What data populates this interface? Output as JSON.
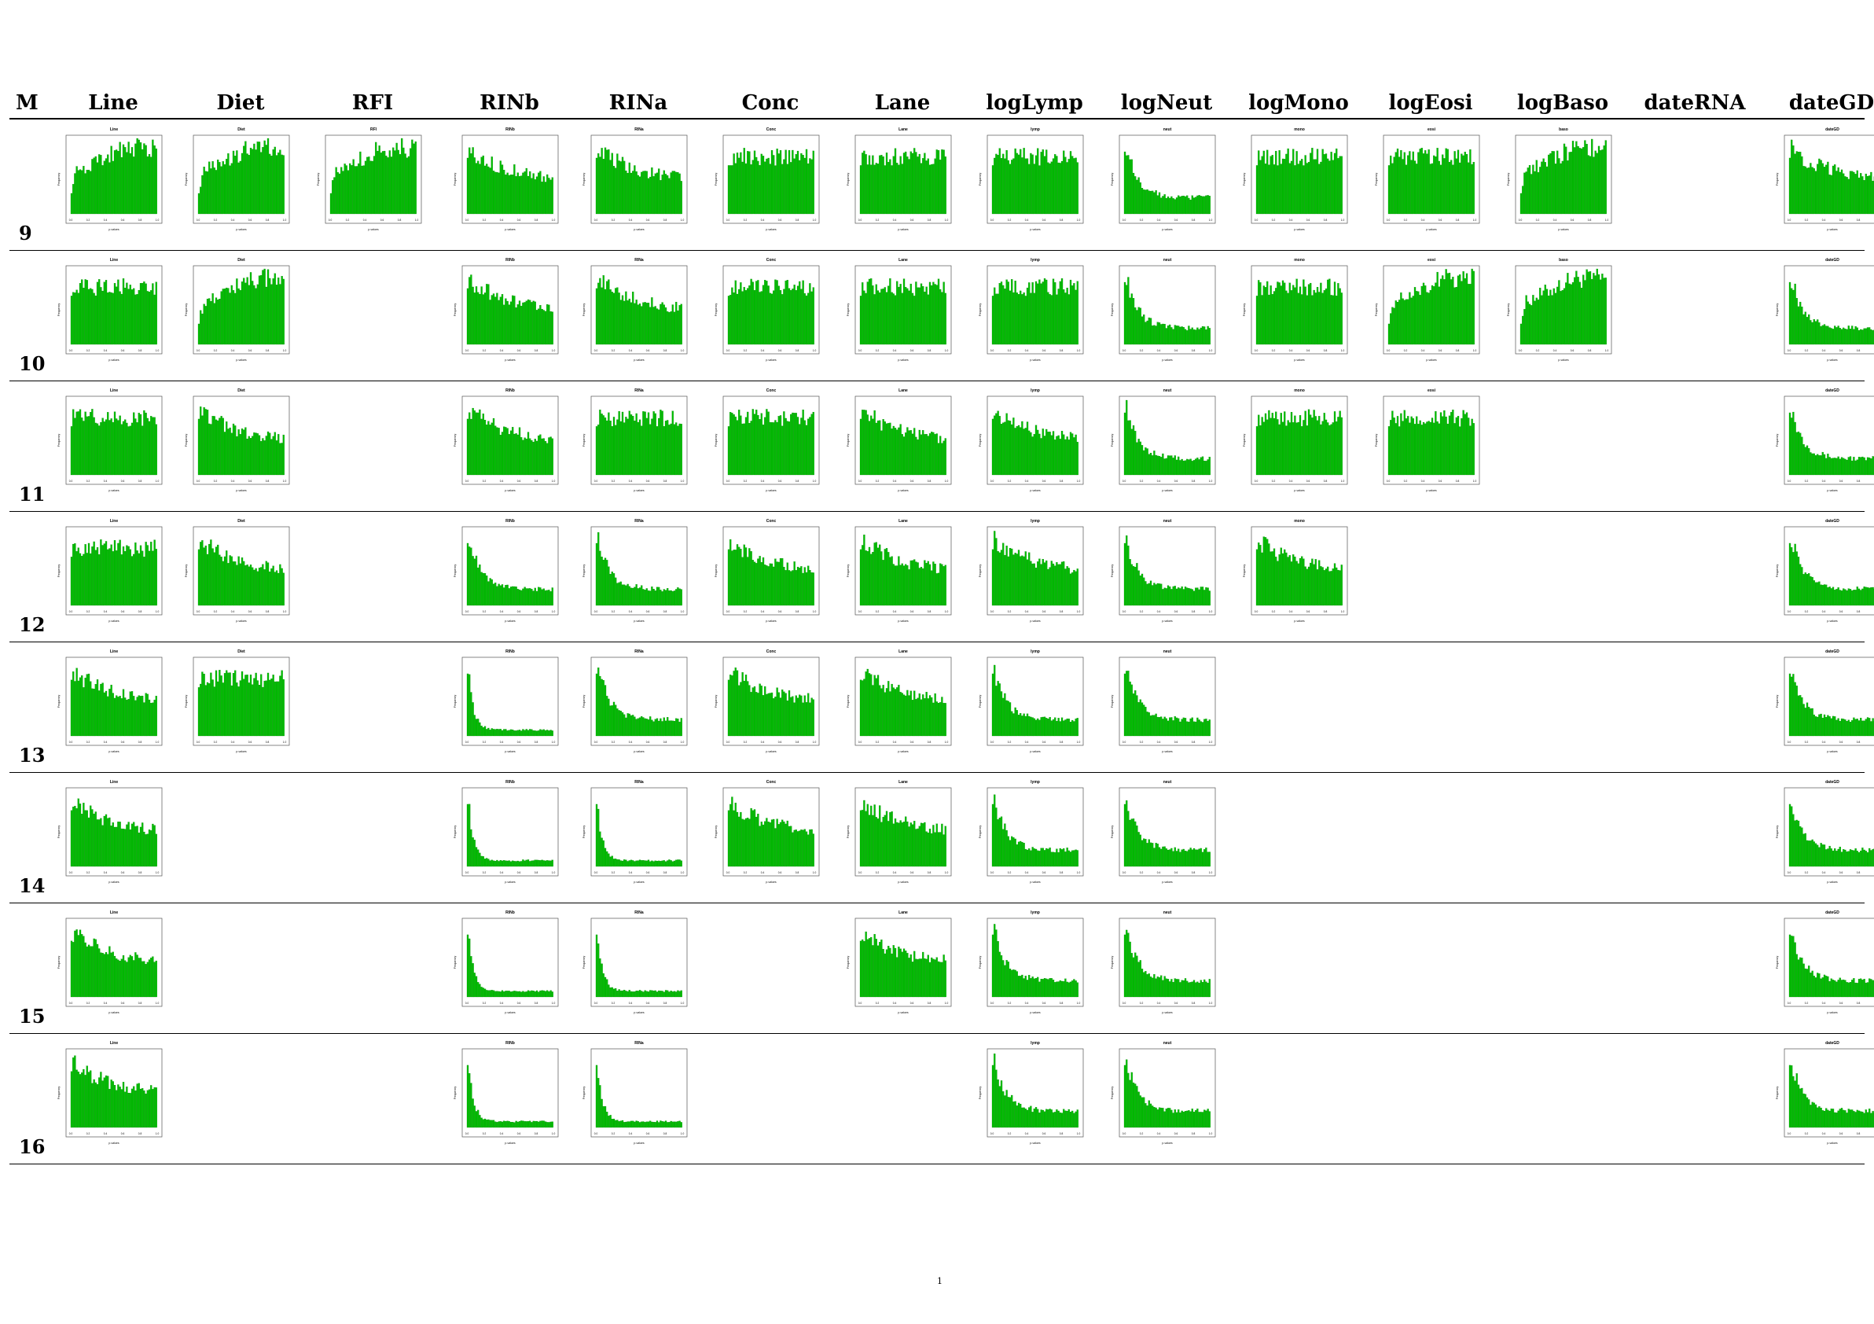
{
  "columns": [
    "Line",
    "Diet",
    "RFI",
    "RINb",
    "RINa",
    "Conc",
    "Lane",
    "logLymp",
    "logNeut",
    "logMono",
    "logEosi",
    "logBaso",
    "dateRNA",
    "dateGD"
  ],
  "row_header": "M",
  "page_number": "1",
  "colors": {
    "bar_fill": "#00c000",
    "bar_edge": "#007a00",
    "frame": "#555555",
    "rule": "#000000"
  },
  "chart_data": {
    "type": "bar",
    "description_note": "",
    "panel_xlabel": "p-values",
    "panel_ylabel": "Frequency",
    "panel_xticks": [
      "0.0",
      "0.2",
      "0.4",
      "0.6",
      "0.8",
      "1.0"
    ],
    "panel_titles": {
      "Line": "Line",
      "Diet": "Diet",
      "RFI": "RFI",
      "RINb": "RINb",
      "RINa": "RINa",
      "Conc": "Conc",
      "Lane": "Lane",
      "logLymp": "lymp",
      "logNeut": "neut",
      "logMono": "mono",
      "logEosi": "eosi",
      "logBaso": "baso",
      "dateGD": "dateGD"
    },
    "rows": [
      {
        "m": "9",
        "panels": [
          {
            "col": "Line",
            "shape": "rising"
          },
          {
            "col": "Diet",
            "shape": "rising"
          },
          {
            "col": "RFI",
            "shape": "rising"
          },
          {
            "col": "RINb",
            "shape": "mild"
          },
          {
            "col": "RINa",
            "shape": "mild"
          },
          {
            "col": "Conc",
            "shape": "flat"
          },
          {
            "col": "Lane",
            "shape": "flat"
          },
          {
            "col": "logLymp",
            "shape": "flat"
          },
          {
            "col": "logNeut",
            "shape": "strong"
          },
          {
            "col": "logMono",
            "shape": "flat"
          },
          {
            "col": "logEosi",
            "shape": "flat"
          },
          {
            "col": "logBaso",
            "shape": "rising"
          },
          {
            "col": "dateGD",
            "shape": "mild"
          }
        ]
      },
      {
        "m": "10",
        "panels": [
          {
            "col": "Line",
            "shape": "flat"
          },
          {
            "col": "Diet",
            "shape": "rising"
          },
          {
            "col": "RINb",
            "shape": "mild"
          },
          {
            "col": "RINa",
            "shape": "mild"
          },
          {
            "col": "Conc",
            "shape": "flat"
          },
          {
            "col": "Lane",
            "shape": "flat"
          },
          {
            "col": "logLymp",
            "shape": "flat"
          },
          {
            "col": "logNeut",
            "shape": "strong"
          },
          {
            "col": "logMono",
            "shape": "flat"
          },
          {
            "col": "logEosi",
            "shape": "rising"
          },
          {
            "col": "logBaso",
            "shape": "rising"
          },
          {
            "col": "dateGD",
            "shape": "strong"
          }
        ]
      },
      {
        "m": "11",
        "panels": [
          {
            "col": "Line",
            "shape": "flat"
          },
          {
            "col": "Diet",
            "shape": "mild"
          },
          {
            "col": "RINb",
            "shape": "mild"
          },
          {
            "col": "RINa",
            "shape": "flat"
          },
          {
            "col": "Conc",
            "shape": "flat"
          },
          {
            "col": "Lane",
            "shape": "mild"
          },
          {
            "col": "logLymp",
            "shape": "mild"
          },
          {
            "col": "logNeut",
            "shape": "strong"
          },
          {
            "col": "logMono",
            "shape": "flat"
          },
          {
            "col": "logEosi",
            "shape": "flat"
          },
          {
            "col": "dateGD",
            "shape": "strong"
          }
        ]
      },
      {
        "m": "12",
        "panels": [
          {
            "col": "Line",
            "shape": "flat"
          },
          {
            "col": "Diet",
            "shape": "mild"
          },
          {
            "col": "RINb",
            "shape": "strong"
          },
          {
            "col": "RINa",
            "shape": "strong"
          },
          {
            "col": "Conc",
            "shape": "mild"
          },
          {
            "col": "Lane",
            "shape": "mild"
          },
          {
            "col": "logLymp",
            "shape": "mild"
          },
          {
            "col": "logNeut",
            "shape": "strong"
          },
          {
            "col": "logMono",
            "shape": "mild"
          },
          {
            "col": "dateGD",
            "shape": "strong"
          }
        ]
      },
      {
        "m": "13",
        "panels": [
          {
            "col": "Line",
            "shape": "mild"
          },
          {
            "col": "Diet",
            "shape": "flat"
          },
          {
            "col": "RINb",
            "shape": "vstrong"
          },
          {
            "col": "RINa",
            "shape": "strong"
          },
          {
            "col": "Conc",
            "shape": "mild"
          },
          {
            "col": "Lane",
            "shape": "mild"
          },
          {
            "col": "logLymp",
            "shape": "strong"
          },
          {
            "col": "logNeut",
            "shape": "strong"
          },
          {
            "col": "dateGD",
            "shape": "strong"
          }
        ]
      },
      {
        "m": "14",
        "panels": [
          {
            "col": "Line",
            "shape": "mild"
          },
          {
            "col": "RINb",
            "shape": "vstrong"
          },
          {
            "col": "RINa",
            "shape": "vstrong"
          },
          {
            "col": "Conc",
            "shape": "mild"
          },
          {
            "col": "Lane",
            "shape": "mild"
          },
          {
            "col": "logLymp",
            "shape": "strong"
          },
          {
            "col": "logNeut",
            "shape": "strong"
          },
          {
            "col": "dateGD",
            "shape": "strong"
          }
        ]
      },
      {
        "m": "15",
        "panels": [
          {
            "col": "Line",
            "shape": "mild"
          },
          {
            "col": "RINb",
            "shape": "vstrong"
          },
          {
            "col": "RINa",
            "shape": "vstrong"
          },
          {
            "col": "Lane",
            "shape": "mild"
          },
          {
            "col": "logLymp",
            "shape": "strong"
          },
          {
            "col": "logNeut",
            "shape": "strong"
          },
          {
            "col": "dateGD",
            "shape": "strong"
          }
        ]
      },
      {
        "m": "16",
        "panels": [
          {
            "col": "Line",
            "shape": "mild"
          },
          {
            "col": "RINb",
            "shape": "vstrong"
          },
          {
            "col": "RINa",
            "shape": "vstrong"
          },
          {
            "col": "logLymp",
            "shape": "strong"
          },
          {
            "col": "logNeut",
            "shape": "strong"
          },
          {
            "col": "dateGD",
            "shape": "strong"
          }
        ]
      }
    ]
  }
}
